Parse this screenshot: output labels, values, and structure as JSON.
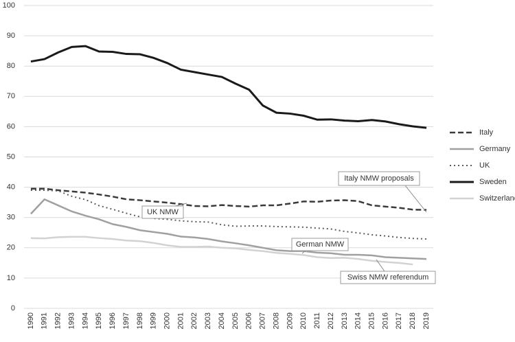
{
  "chart_data": {
    "type": "line",
    "categories": [
      "1990",
      "1991",
      "1992",
      "1993",
      "1994",
      "1995",
      "1996",
      "1997",
      "1998",
      "1999",
      "2000",
      "2001",
      "2002",
      "2003",
      "2004",
      "2005",
      "2006",
      "2007",
      "2008",
      "2009",
      "2010",
      "2011",
      "2012",
      "2013",
      "2014",
      "2015",
      "2016",
      "2017",
      "2018",
      "2019"
    ],
    "series": [
      {
        "name": "Italy",
        "color": "#3a3a3a",
        "dash": "dashed",
        "values": [
          39.5,
          39.5,
          39.0,
          38.6,
          38.2,
          37.6,
          36.9,
          36.0,
          35.7,
          35.3,
          34.9,
          34.4,
          33.8,
          33.7,
          34.1,
          33.8,
          33.6,
          34.0,
          34.0,
          34.6,
          35.3,
          35.2,
          35.6,
          35.7,
          35.4,
          34.0,
          33.6,
          33.2,
          32.6,
          32.5
        ]
      },
      {
        "name": "Germany",
        "color": "#a0a0a0",
        "dash": "solid",
        "values": [
          31.2,
          36.0,
          34.0,
          32.0,
          30.6,
          29.4,
          27.8,
          26.9,
          25.8,
          25.2,
          24.6,
          23.7,
          23.4,
          22.9,
          22.1,
          21.5,
          20.8,
          20.0,
          19.2,
          18.9,
          18.9,
          18.4,
          18.2,
          17.7,
          17.7,
          17.5,
          16.9,
          16.7,
          16.5,
          16.3
        ]
      },
      {
        "name": "UK",
        "color": "#5a5a5a",
        "dash": "dotted",
        "values": [
          39.0,
          39.0,
          38.8,
          37.0,
          35.9,
          33.9,
          32.7,
          31.4,
          30.2,
          29.7,
          29.4,
          28.9,
          28.6,
          28.5,
          27.6,
          27.1,
          27.2,
          27.2,
          27.0,
          26.9,
          26.8,
          26.5,
          26.2,
          25.4,
          24.9,
          24.3,
          23.9,
          23.4,
          23.1,
          22.9
        ]
      },
      {
        "name": "Sweden",
        "color": "#1a1a1a",
        "dash": "solid",
        "values": [
          81.5,
          82.3,
          84.5,
          86.3,
          86.6,
          84.8,
          84.7,
          84.0,
          83.9,
          82.7,
          81.0,
          78.8,
          78.0,
          77.2,
          76.4,
          74.2,
          72.2,
          67.0,
          64.6,
          64.3,
          63.6,
          62.3,
          62.4,
          62.0,
          61.8,
          62.2,
          61.7,
          60.8,
          60.1,
          59.6
        ]
      },
      {
        "name": "Switzerland",
        "color": "#d2d2d2",
        "dash": "solid",
        "values": [
          23.2,
          23.1,
          23.5,
          23.6,
          23.6,
          23.2,
          22.9,
          22.4,
          22.2,
          21.6,
          20.8,
          20.3,
          20.3,
          20.4,
          20.0,
          19.8,
          19.3,
          18.9,
          18.3,
          18.0,
          17.6,
          16.9,
          16.6,
          16.7,
          16.3,
          15.7,
          15.3,
          15.0,
          14.5,
          null
        ]
      }
    ],
    "annotations": [
      "Italy NMW proposals",
      "UK NMW",
      "German NMW",
      "Swiss NMW referendum"
    ],
    "ylim": [
      0,
      100
    ],
    "yticks": [
      0,
      10,
      20,
      30,
      40,
      50,
      60,
      70,
      80,
      90,
      100
    ],
    "grid": true,
    "legend": "right"
  }
}
